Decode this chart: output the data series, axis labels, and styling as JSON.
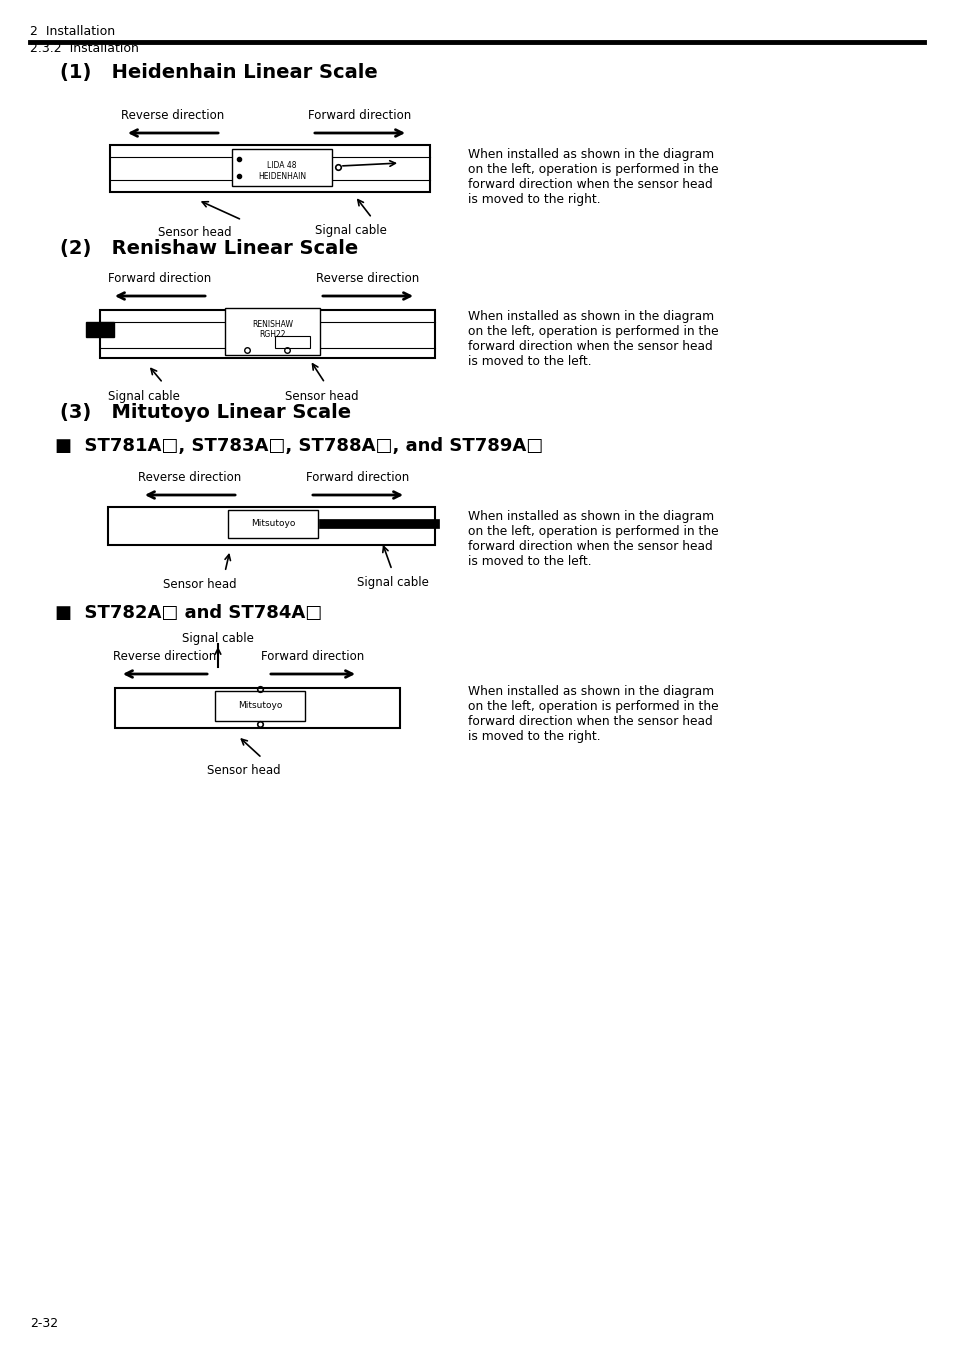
{
  "page_header_left": "2  Installation",
  "page_header_sub": "2.3.2  Installation",
  "section1_title": "(1)   Heidenhain Linear Scale",
  "section2_title": "(2)   Renishaw Linear Scale",
  "section3_title": "(3)   Mitutoyo Linear Scale",
  "sub1_title": "■  ST781A□, ST783A□, ST788A□, and ST789A□",
  "sub2_title": "■  ST782A□ and ST784A□",
  "desc1": "When installed as shown in the diagram\non the left, operation is performed in the\nforward direction when the sensor head\nis moved to the right.",
  "desc2": "When installed as shown in the diagram\non the left, operation is performed in the\nforward direction when the sensor head\nis moved to the left.",
  "desc3": "When installed as shown in the diagram\non the left, operation is performed in the\nforward direction when the sensor head\nis moved to the left.",
  "desc4": "When installed as shown in the diagram\non the left, operation is performed in the\nforward direction when the sensor head\nis moved to the right.",
  "page_number": "2-32",
  "bg_color": "#ffffff"
}
